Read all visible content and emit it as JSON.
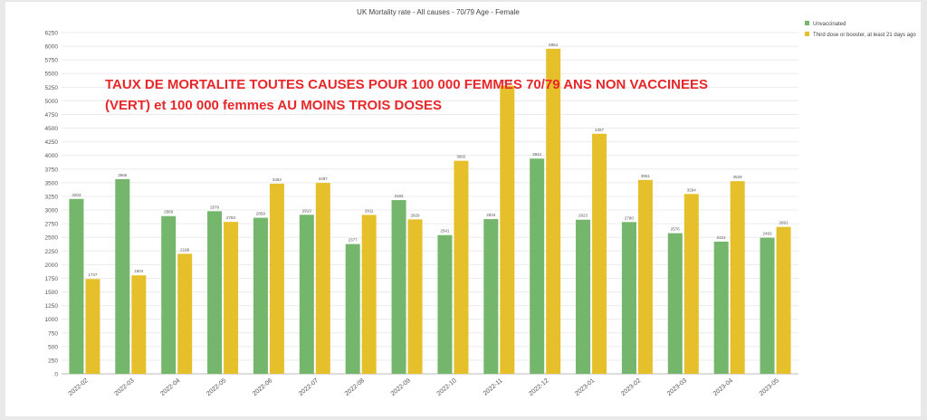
{
  "chart_data": {
    "type": "bar",
    "title": "UK Mortality rate - All causes - 70/79 Age - Female",
    "categories": [
      "2022-02",
      "2022-03",
      "2022-04",
      "2022-05",
      "2022-06",
      "2022-07",
      "2022-08",
      "2022-09",
      "2022-10",
      "2022-11",
      "2022-12",
      "2023-01",
      "2023-02",
      "2023-03",
      "2023-04",
      "2023-05"
    ],
    "series": [
      {
        "name": "Unvaccinated",
        "color": "#74b66b",
        "values": [
          3203,
          3566,
          2889,
          2979,
          2859,
          2913,
          2377,
          3182,
          2541,
          2834,
          3942,
          2823,
          2780,
          2576,
          2421,
          2493
        ]
      },
      {
        "name": "Third dose or booster, at least 21 days ago",
        "color": "#e6c02b",
        "values": [
          1737,
          1804,
          2199,
          2783,
          3483,
          3497,
          2911,
          2829,
          3902,
          5278,
          5954,
          4397,
          3551,
          3294,
          3529,
          2691
        ]
      }
    ],
    "yticks": [
      0,
      250,
      500,
      750,
      1000,
      1250,
      1500,
      1750,
      2000,
      2250,
      2500,
      2750,
      3000,
      3250,
      3500,
      3750,
      4000,
      4250,
      4500,
      4750,
      5000,
      5250,
      5500,
      5750,
      6000,
      6250
    ],
    "ylim": [
      0,
      6250
    ],
    "grid": true,
    "legend": "top-right",
    "annotation": [
      "TAUX DE MORTALITE TOUTES CAUSES POUR 100 000 FEMMES 70/79 ANS  NON VACCINEES",
      "(VERT) et 100 000 femmes  AU MOINS TROIS DOSES"
    ]
  }
}
